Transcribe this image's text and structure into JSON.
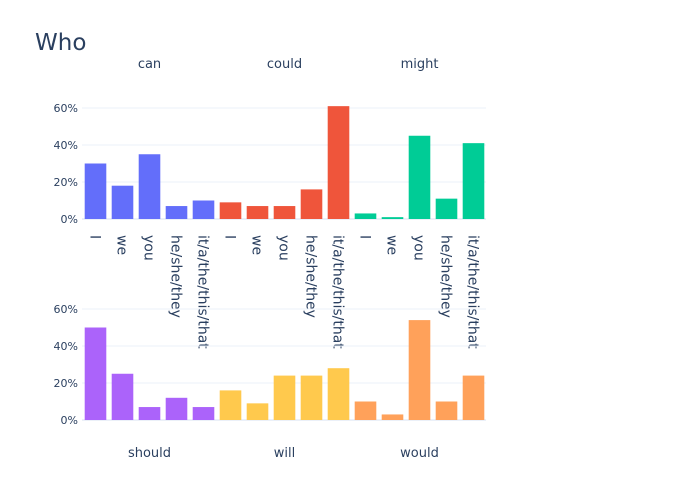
{
  "chart_data": {
    "type": "bar",
    "title": "Who",
    "categories": [
      "I",
      "we",
      "you",
      "he/she/they",
      "it/a/the/this/that"
    ],
    "y_tick_labels": [
      "0%",
      "20%",
      "40%",
      "60%"
    ],
    "y_tick_values": [
      0,
      20,
      40,
      60
    ],
    "ylim": [
      0,
      62
    ],
    "grid": true,
    "panels": [
      {
        "name": "can",
        "color": "#636efa",
        "values": [
          30,
          18,
          35,
          7,
          10
        ]
      },
      {
        "name": "could",
        "color": "#ef553b",
        "values": [
          9,
          7,
          7,
          16,
          61
        ]
      },
      {
        "name": "might",
        "color": "#00cc96",
        "values": [
          3,
          1,
          45,
          11,
          41
        ]
      },
      {
        "name": "should",
        "color": "#ab63fa",
        "values": [
          50,
          25,
          7,
          12,
          7
        ]
      },
      {
        "name": "will",
        "color": "#ffc94d",
        "values": [
          16,
          9,
          24,
          24,
          28
        ]
      },
      {
        "name": "would",
        "color": "#ffa15a",
        "values": [
          10,
          3,
          54,
          10,
          24
        ]
      }
    ]
  }
}
